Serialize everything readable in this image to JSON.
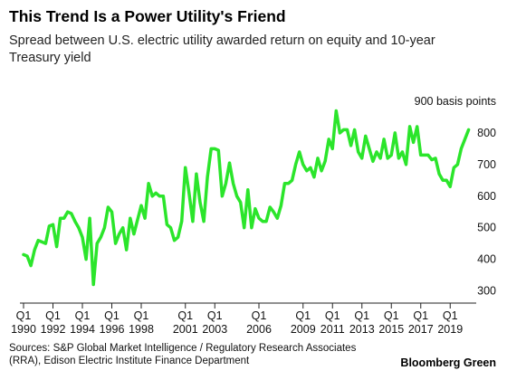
{
  "chart_data": {
    "type": "line",
    "title": "This Trend Is a Power Utility's Friend",
    "subtitle": "Spread between U.S. electric utility awarded return on equity and 10-year Treasury yield",
    "y_unit_label": "900 basis points",
    "ylim": [
      270,
      900
    ],
    "yticks": [
      300,
      400,
      500,
      600,
      700,
      800
    ],
    "y_top_tick": 900,
    "xlim": [
      1990.0,
      2020.4
    ],
    "xticks": [
      {
        "q": "Q1",
        "year": "1990",
        "x": 1990.0
      },
      {
        "q": "Q1",
        "year": "1992",
        "x": 1992.0
      },
      {
        "q": "Q1",
        "year": "1994",
        "x": 1994.0
      },
      {
        "q": "Q1",
        "year": "1996",
        "x": 1996.0
      },
      {
        "q": "Q1",
        "year": "1998",
        "x": 1998.0
      },
      {
        "q": "Q1",
        "year": "2001",
        "x": 2001.0
      },
      {
        "q": "Q1",
        "year": "2003",
        "x": 2003.0
      },
      {
        "q": "Q1",
        "year": "2006",
        "x": 2006.0
      },
      {
        "q": "Q1",
        "year": "2009",
        "x": 2009.0
      },
      {
        "q": "Q1",
        "year": "2011",
        "x": 2011.0
      },
      {
        "q": "Q1",
        "year": "2013",
        "x": 2013.0
      },
      {
        "q": "Q1",
        "year": "2015",
        "x": 2015.0
      },
      {
        "q": "Q1",
        "year": "2017",
        "x": 2017.0
      },
      {
        "q": "Q1",
        "year": "2019",
        "x": 2019.0
      }
    ],
    "series": [
      {
        "color": "#2be52b",
        "x": [
          1990.0,
          1990.25,
          1990.5,
          1990.75,
          1991.0,
          1991.25,
          1991.5,
          1991.75,
          1992.0,
          1992.25,
          1992.5,
          1992.75,
          1993.0,
          1993.25,
          1993.5,
          1993.75,
          1994.0,
          1994.25,
          1994.5,
          1994.75,
          1995.0,
          1995.25,
          1995.5,
          1995.75,
          1996.0,
          1996.25,
          1996.5,
          1996.75,
          1997.0,
          1997.25,
          1997.5,
          1997.75,
          1998.0,
          1998.25,
          1998.5,
          1998.75,
          1999.0,
          1999.25,
          1999.5,
          1999.75,
          2000.0,
          2000.25,
          2000.5,
          2000.75,
          2001.0,
          2001.25,
          2001.5,
          2001.75,
          2002.0,
          2002.25,
          2002.5,
          2002.75,
          2003.0,
          2003.25,
          2003.5,
          2003.75,
          2004.0,
          2004.25,
          2004.5,
          2004.75,
          2005.0,
          2005.25,
          2005.5,
          2005.75,
          2006.0,
          2006.25,
          2006.5,
          2006.75,
          2007.0,
          2007.25,
          2007.5,
          2007.75,
          2008.0,
          2008.25,
          2008.5,
          2008.75,
          2009.0,
          2009.25,
          2009.5,
          2009.75,
          2010.0,
          2010.25,
          2010.5,
          2010.75,
          2011.0,
          2011.25,
          2011.5,
          2011.75,
          2012.0,
          2012.25,
          2012.5,
          2012.75,
          2013.0,
          2013.25,
          2013.5,
          2013.75,
          2014.0,
          2014.25,
          2014.5,
          2014.75,
          2015.0,
          2015.25,
          2015.5,
          2015.75,
          2016.0,
          2016.25,
          2016.5,
          2016.75,
          2017.0,
          2017.25,
          2017.5,
          2017.75,
          2018.0,
          2018.25,
          2018.5,
          2018.75,
          2019.0,
          2019.25,
          2019.5,
          2019.75,
          2020.0,
          2020.25
        ],
        "values": [
          415,
          410,
          380,
          430,
          460,
          455,
          450,
          505,
          510,
          440,
          530,
          530,
          550,
          545,
          520,
          500,
          470,
          400,
          530,
          320,
          450,
          470,
          500,
          565,
          550,
          450,
          480,
          500,
          430,
          530,
          480,
          525,
          570,
          530,
          640,
          600,
          610,
          600,
          600,
          510,
          500,
          460,
          470,
          520,
          690,
          610,
          520,
          670,
          580,
          520,
          660,
          750,
          750,
          745,
          600,
          640,
          705,
          640,
          600,
          580,
          500,
          620,
          500,
          560,
          530,
          520,
          520,
          565,
          550,
          530,
          570,
          640,
          640,
          650,
          700,
          740,
          700,
          680,
          690,
          660,
          720,
          680,
          710,
          780,
          750,
          870,
          800,
          810,
          810,
          760,
          810,
          740,
          720,
          790,
          750,
          710,
          740,
          720,
          780,
          720,
          730,
          800,
          720,
          740,
          700,
          820,
          770,
          820,
          730,
          730,
          730,
          715,
          720,
          670,
          650,
          650,
          630,
          690,
          700,
          750,
          780,
          810
        ]
      }
    ],
    "source": "Sources: S&P Global Market Intelligence / Regulatory Research Associates (RRA), Edison Electric Institute Finance Department",
    "brand": "Bloomberg Green"
  }
}
